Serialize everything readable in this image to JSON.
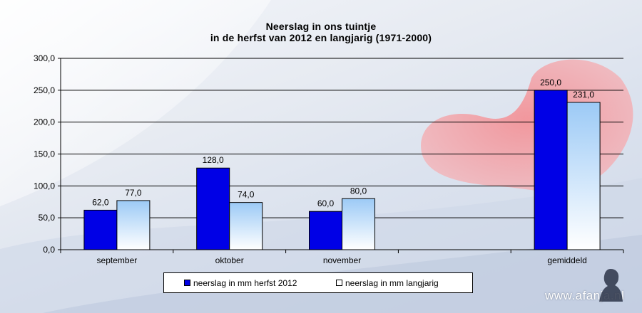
{
  "title_line1": "Neerslag  in ons tuintje",
  "title_line2": "in de herfst  van 2012  en langjarig  (1971-2000)",
  "chart_data": {
    "type": "bar",
    "categories": [
      "september",
      "oktober",
      "november",
      "",
      "gemiddeld"
    ],
    "series": [
      {
        "name": "neerslag in mm herfst 2012",
        "values": [
          62.0,
          128.0,
          60.0,
          null,
          250.0
        ],
        "labels": [
          "62,0",
          "128,0",
          "60,0",
          "",
          "250,0"
        ],
        "color": "#0000e6"
      },
      {
        "name": "neerslag in mm langjarig",
        "values": [
          77.0,
          74.0,
          80.0,
          null,
          231.0
        ],
        "labels": [
          "77,0",
          "74,0",
          "80,0",
          "",
          "231,0"
        ],
        "color": "#a8d4ff"
      }
    ],
    "ylim": [
      0,
      300
    ],
    "yticks": [
      0,
      50,
      100,
      150,
      200,
      250,
      300
    ],
    "ytick_labels": [
      "0,0",
      "50,0",
      "100,0",
      "150,0",
      "200,0",
      "250,0",
      "300,0"
    ],
    "grid": true,
    "legend": "bottom"
  },
  "legend": {
    "item1": "neerslag in mm herfst 2012",
    "item2": "neerslag in mm langjarig"
  },
  "watermark": "www.afanja.nl"
}
